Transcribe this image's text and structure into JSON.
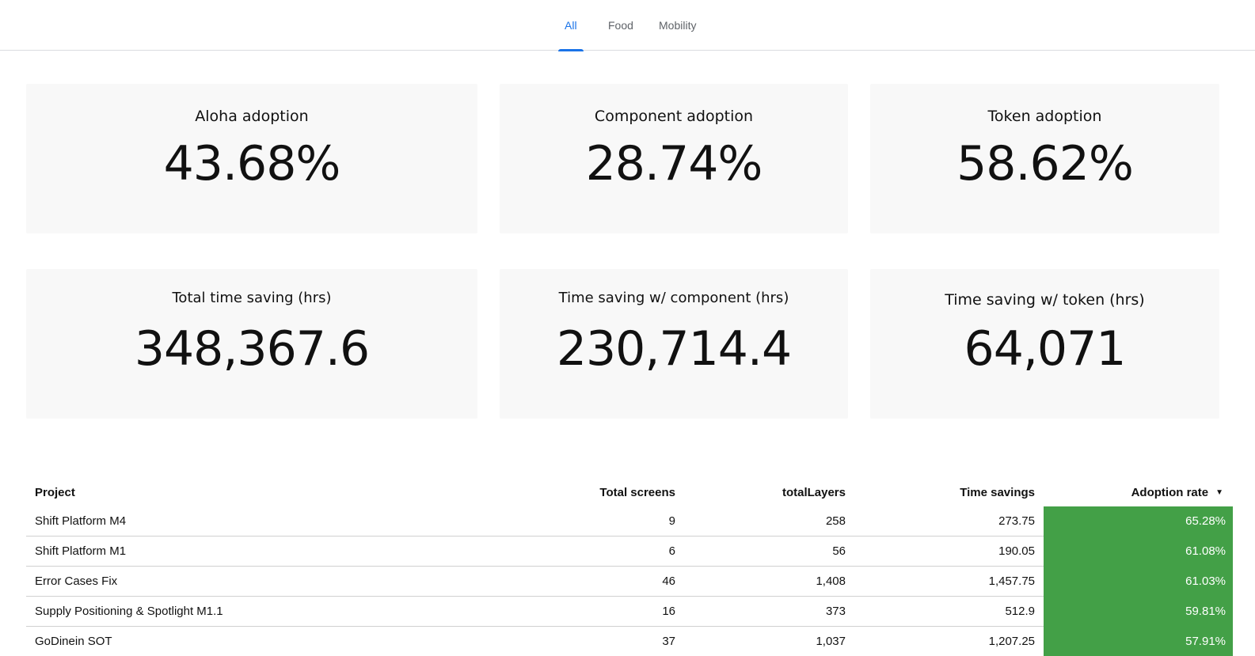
{
  "tabs": [
    {
      "label": "All",
      "active": true
    },
    {
      "label": "Food",
      "active": false
    },
    {
      "label": "Mobility",
      "active": false
    }
  ],
  "cards": {
    "aloha_adoption": {
      "title": "Aloha adoption",
      "value": "43.68%"
    },
    "component_adoption": {
      "title": "Component adoption",
      "value": "28.74%"
    },
    "token_adoption": {
      "title": "Token adoption",
      "value": "58.62%"
    },
    "total_time_saving": {
      "title": "Total time saving (hrs)",
      "value": "348,367.6"
    },
    "time_saving_component": {
      "title": "Time saving w/ component (hrs)",
      "value": "230,714.4"
    },
    "time_saving_token": {
      "title": "Time saving w/ token (hrs)",
      "value": "64,071"
    }
  },
  "table": {
    "headers": {
      "project": "Project",
      "total_screens": "Total screens",
      "total_layers": "totalLayers",
      "time_savings": "Time savings",
      "adoption_rate": "Adoption rate"
    },
    "sort": {
      "column": "adoption_rate",
      "direction": "desc",
      "icon": "sort-down-icon"
    },
    "rows": [
      {
        "project": "Shift Platform M4",
        "total_screens": "9",
        "total_layers": "258",
        "time_savings": "273.75",
        "adoption_rate": "65.28%"
      },
      {
        "project": "Shift Platform M1",
        "total_screens": "6",
        "total_layers": "56",
        "time_savings": "190.05",
        "adoption_rate": "61.08%"
      },
      {
        "project": "Error Cases Fix",
        "total_screens": "46",
        "total_layers": "1,408",
        "time_savings": "1,457.75",
        "adoption_rate": "61.03%"
      },
      {
        "project": "Supply Positioning & Spotlight M1.1",
        "total_screens": "16",
        "total_layers": "373",
        "time_savings": "512.9",
        "adoption_rate": "59.81%"
      },
      {
        "project": "GoDinein SOT",
        "total_screens": "37",
        "total_layers": "1,037",
        "time_savings": "1,207.25",
        "adoption_rate": "57.91%"
      }
    ]
  },
  "colors": {
    "accent": "#1a73e8",
    "adoption_cell": "#43a047",
    "card_bg": "#f8f8f8"
  }
}
